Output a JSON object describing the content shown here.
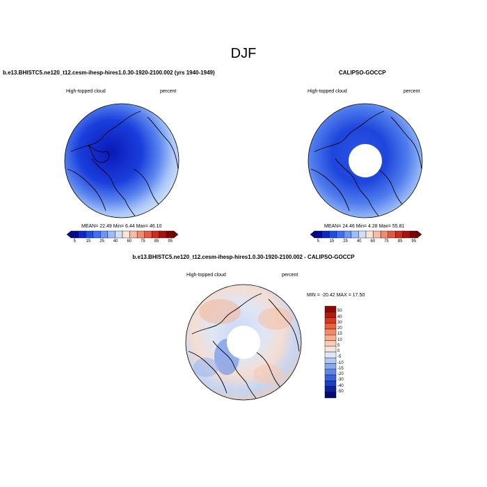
{
  "title": "DJF",
  "panels": [
    {
      "title": "b.e13.BHISTC5.ne120_t12.cesm-ihesp-hires1.0.30-1920-2100.002 (yrs 1940-1949)",
      "left_label": "High-topped cloud",
      "right_label": "percent",
      "stats": "MEAN=  22.49  Min=   6.44  Max=  46.10",
      "hole": false,
      "palette": "hi"
    },
    {
      "title": "CALIPSO-GOCCP",
      "left_label": "High-topped cloud",
      "right_label": "percent",
      "stats": "MEAN=  24.46  Min=   4.28  Max=  55.81",
      "hole": true,
      "palette": "obs"
    },
    {
      "title": "b.e13.BHISTC5.ne120_t12.cesm-ihesp-hires1.0.30-1920-2100.002 - CALIPSO-GOCCP",
      "left_label": "High-topped cloud",
      "right_label": "percent",
      "stats": "MIN = -20.42 MAX =  17.50",
      "hole": true,
      "palette": "diff"
    }
  ],
  "colorbar_horizontal": {
    "labels": [
      "5",
      "15",
      "25",
      "40",
      "60",
      "75",
      "85",
      "95"
    ],
    "colors": [
      "#08088f",
      "#0d27c8",
      "#1f4fe0",
      "#3f6ff0",
      "#6b96f5",
      "#9bbdf8",
      "#cfe0fb",
      "#fbe3d6",
      "#f8bca4",
      "#f08b6e",
      "#e25b3f",
      "#cc2e1c",
      "#a8110c",
      "#7a0403"
    ]
  },
  "colorbar_vertical": {
    "labels": [
      "50",
      "40",
      "30",
      "20",
      "15",
      "10",
      "5",
      "0",
      "-5",
      "-10",
      "-15",
      "-20",
      "-30",
      "-40",
      "-50"
    ],
    "colors": [
      "#8b0a05",
      "#b11a0c",
      "#d4391d",
      "#ea5f3c",
      "#f58966",
      "#f9ae8f",
      "#fbcbb4",
      "#f3e4dc",
      "#dbe6f7",
      "#b3c9f4",
      "#8aa9ee",
      "#5e86e6",
      "#3762da",
      "#1d3fc4",
      "#0d219d",
      "#050a70"
    ]
  }
}
